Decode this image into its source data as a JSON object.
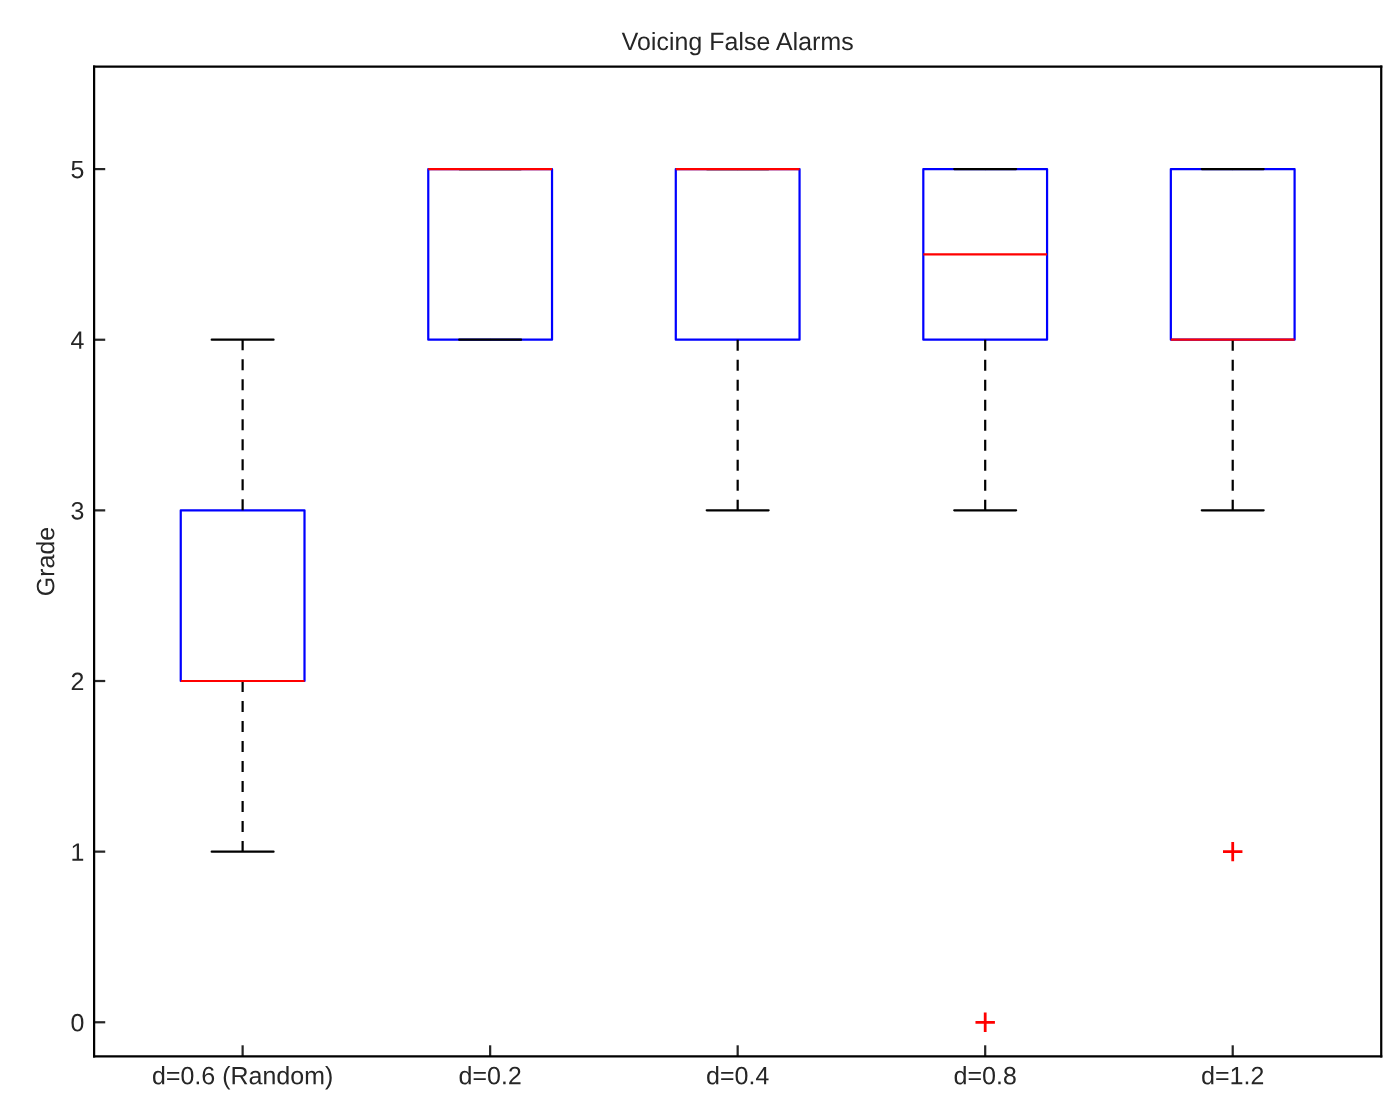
{
  "chart_data": {
    "type": "box",
    "title": "Voicing False Alarms",
    "ylabel": "Grade",
    "categories": [
      "d=0.6 (Random)",
      "d=0.2",
      "d=0.4",
      "d=0.8",
      "d=1.2"
    ],
    "color": "#0000ff",
    "boxes": [
      {
        "low": 1,
        "q1": 2,
        "median": 2,
        "q3": 3,
        "high": 4
      },
      {
        "low": 4,
        "q1": 4,
        "median": 5,
        "q3": 5,
        "high": 5
      },
      {
        "low": 3,
        "q1": 4,
        "median": 5,
        "q3": 5,
        "high": 5
      },
      {
        "low": 3,
        "q1": 4,
        "median": 4.5,
        "q3": 5,
        "high": 5,
        "outliers": [
          0
        ]
      },
      {
        "low": 3,
        "q1": 4,
        "median": 4,
        "q3": 5,
        "high": 5,
        "outliers": [
          1
        ]
      }
    ],
    "ylim": [
      -0.2,
      5.6
    ],
    "yticks": [
      0,
      1,
      2,
      3,
      4,
      5
    ],
    "grid": false
  }
}
